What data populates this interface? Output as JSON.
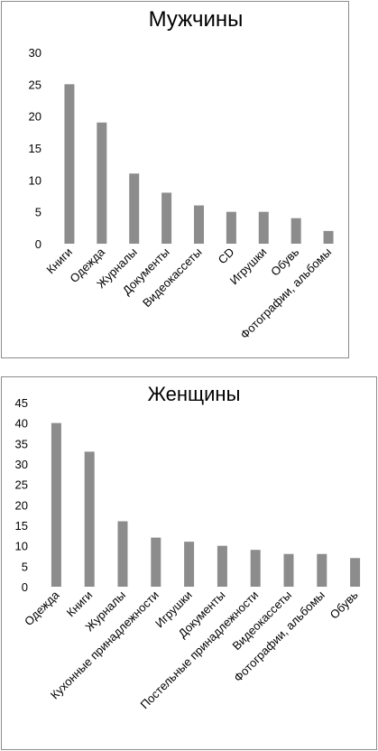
{
  "chart_data": [
    {
      "type": "bar",
      "title": "Мужчины",
      "categories": [
        "Книги",
        "Одежда",
        "Журналы",
        "Документы",
        "Видеокассеты",
        "CD",
        "Игрушки",
        "Обувь",
        "Фотографии, альбомы"
      ],
      "values": [
        25,
        19,
        11,
        8,
        6,
        5,
        5,
        4,
        2
      ],
      "ylim": [
        0,
        30
      ],
      "yticks": [
        0,
        5,
        10,
        15,
        20,
        25,
        30
      ],
      "grid": false,
      "bar_color": "#8c8c8c"
    },
    {
      "type": "bar",
      "title": "Женщины",
      "categories": [
        "Одежда",
        "Книги",
        "Журналы",
        "Кухонные принадлежности",
        "Игрушки",
        "Документы",
        "Постельные принадлежности",
        "Видеокассеты",
        "Фотографии, альбомы",
        "Обувь"
      ],
      "values": [
        40,
        33,
        16,
        12,
        11,
        10,
        9,
        8,
        8,
        7
      ],
      "ylim": [
        0,
        45
      ],
      "yticks": [
        0,
        5,
        10,
        15,
        20,
        25,
        30,
        35,
        40,
        45
      ],
      "grid": false,
      "bar_color": "#8c8c8c"
    }
  ]
}
